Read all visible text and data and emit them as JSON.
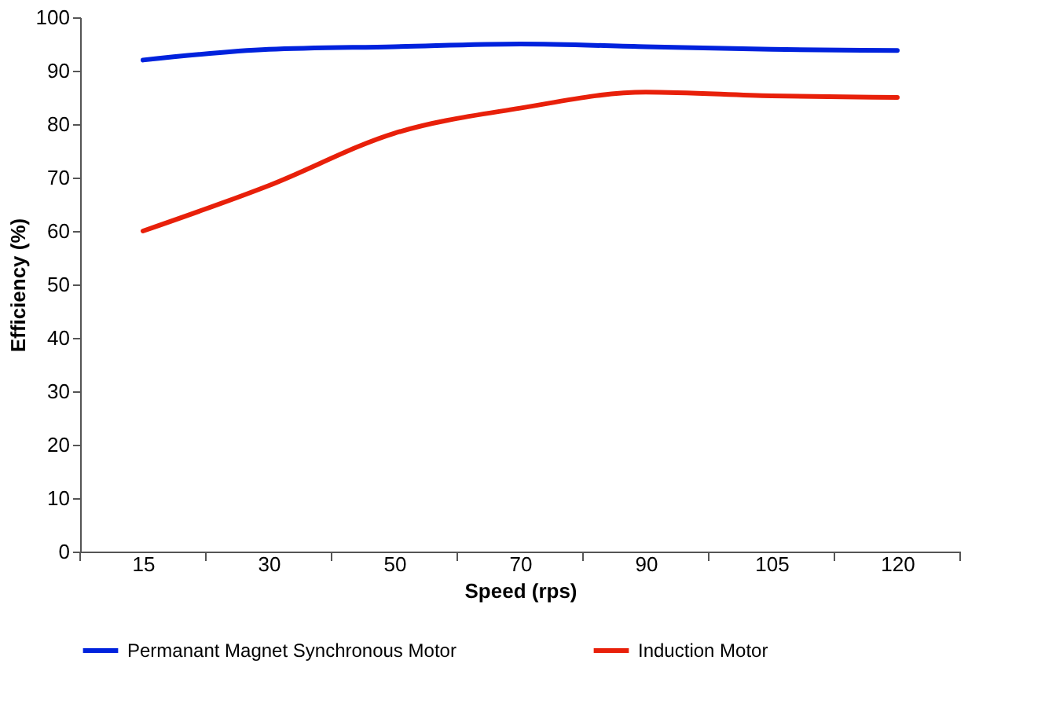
{
  "chart_data": {
    "type": "line",
    "xlabel": "Speed (rps)",
    "ylabel": "Efficiency (%)",
    "categories": [
      "15",
      "30",
      "50",
      "70",
      "90",
      "105",
      "120"
    ],
    "series": [
      {
        "name": "Permanant Magnet Synchronous Motor",
        "color": "#0022dd",
        "values": [
          92,
          94,
          94.5,
          95,
          94.5,
          94,
          93.8
        ]
      },
      {
        "name": "Induction Motor",
        "color": "#e8200a",
        "values": [
          60,
          68.5,
          78.3,
          83,
          86,
          85.3,
          85
        ]
      }
    ],
    "ylim": [
      0,
      100
    ],
    "yticks": [
      0,
      10,
      20,
      30,
      40,
      50,
      60,
      70,
      80,
      90,
      100
    ],
    "grid": false,
    "legend": "bottom",
    "marker": "none",
    "line_style": "solid"
  }
}
